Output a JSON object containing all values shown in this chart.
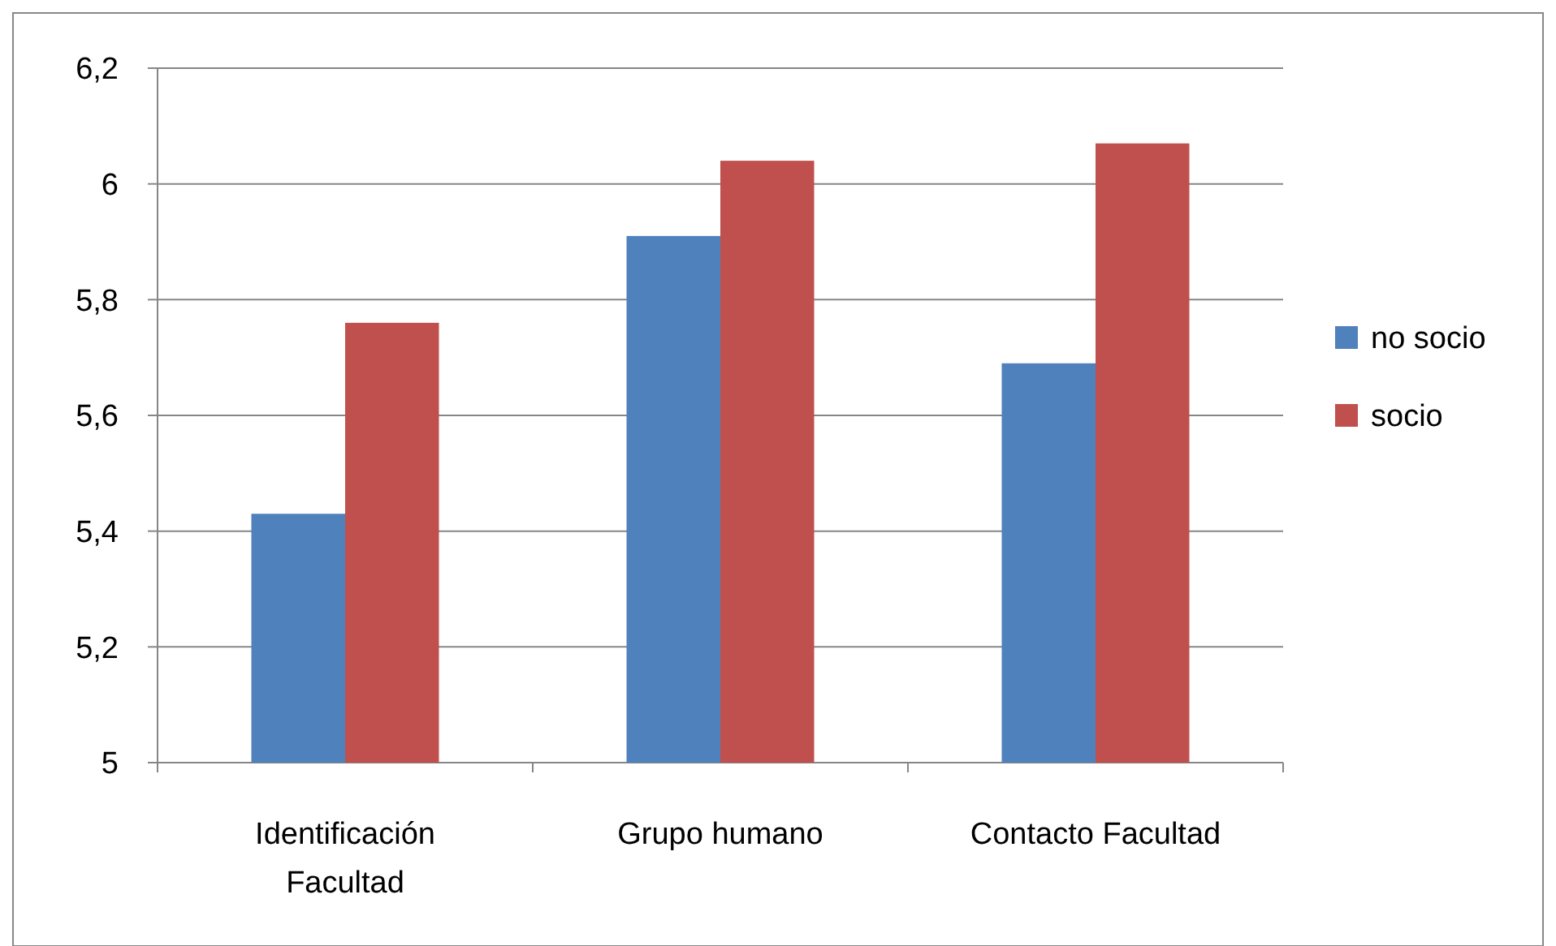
{
  "chart_data": {
    "type": "bar",
    "categories": [
      "Identificación Facultad",
      "Grupo humano",
      "Contacto Facultad"
    ],
    "series": [
      {
        "name": "no socio",
        "color": "#4f81bd",
        "values": [
          5.43,
          5.91,
          5.69
        ]
      },
      {
        "name": "socio",
        "color": "#c0504d",
        "values": [
          5.76,
          6.04,
          6.07
        ]
      }
    ],
    "ylim": [
      5,
      6.2
    ],
    "yticks": [
      5,
      {
        "value": 5.2,
        "label": "5,2"
      },
      {
        "value": 5.4,
        "label": "5,4"
      },
      {
        "value": 5.6,
        "label": "5,6"
      },
      {
        "value": 5.8,
        "label": "5,8"
      },
      6,
      {
        "value": 6.2,
        "label": "6,2"
      }
    ],
    "grid": "y",
    "legend": "right"
  }
}
